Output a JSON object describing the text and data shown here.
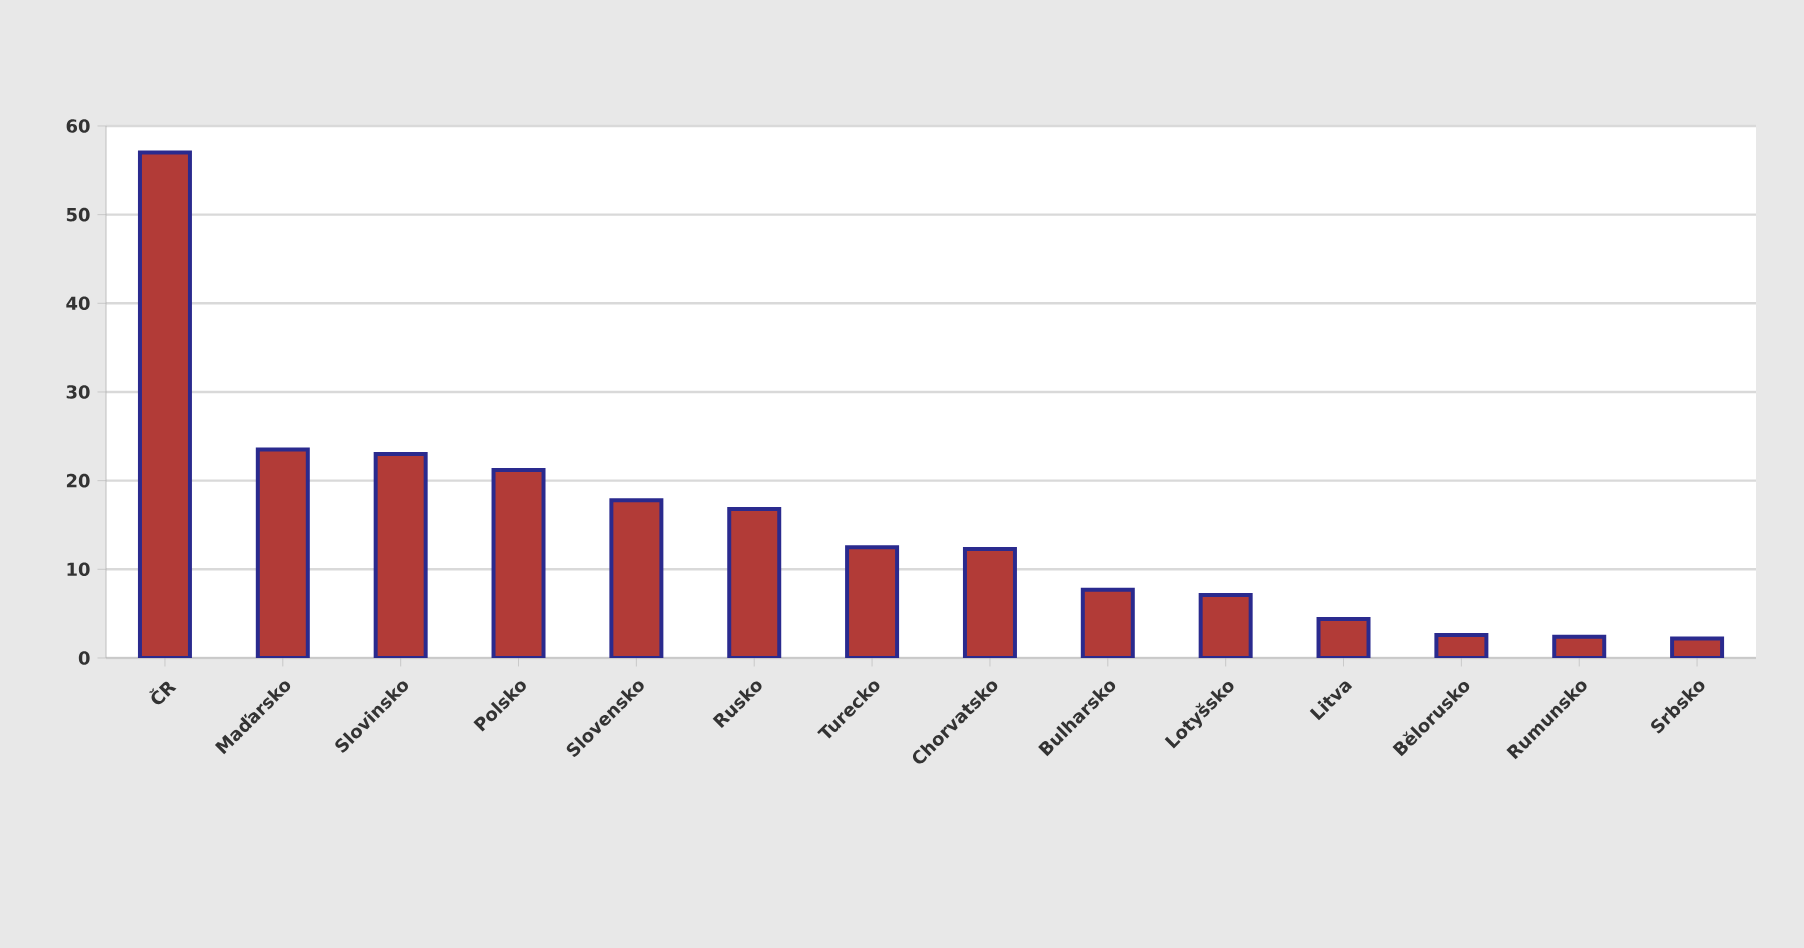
{
  "chart_data": {
    "type": "bar",
    "categories": [
      "ČR",
      "Maďarsko",
      "Slovinsko",
      "Polsko",
      "Slovensko",
      "Rusko",
      "Turecko",
      "Chorvatsko",
      "Bulharsko",
      "Lotyšsko",
      "Litva",
      "Bělorusko",
      "Rumunsko",
      "Srbsko"
    ],
    "values": [
      57,
      23.5,
      23,
      21.2,
      17.8,
      16.8,
      12.5,
      12.3,
      7.7,
      7.1,
      4.4,
      2.6,
      2.4,
      2.2
    ],
    "color": "#b23b37",
    "ylim": [
      0,
      60
    ],
    "yticks": [
      0,
      10,
      20,
      30,
      40,
      50,
      60
    ],
    "grid": "y"
  }
}
